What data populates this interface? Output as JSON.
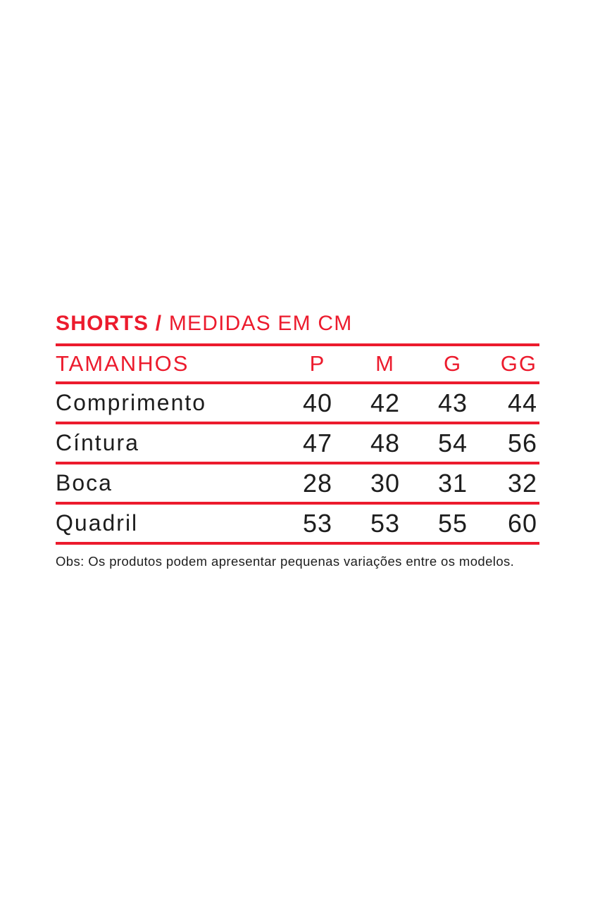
{
  "theme": {
    "accent_red": "#ec1b2d",
    "text_color": "#1d1d1d",
    "background": "#ffffff"
  },
  "header": {
    "product": "SHORTS /",
    "subtitle": " MEDIDAS EM CM"
  },
  "table": {
    "header_label": "TAMANHOS",
    "size_headers": [
      "P",
      "M",
      "G",
      "GG"
    ],
    "rows": [
      {
        "label": "Comprimento",
        "values": [
          "40",
          "42",
          "43",
          "44"
        ]
      },
      {
        "label": "Cíntura",
        "values": [
          "47",
          "48",
          "54",
          "56"
        ]
      },
      {
        "label": "Boca",
        "values": [
          "28",
          "30",
          "31",
          "32"
        ]
      },
      {
        "label": "Quadril",
        "values": [
          "53",
          "53",
          "55",
          "60"
        ]
      }
    ]
  },
  "footnote": "Obs: Os produtos podem apresentar pequenas variações entre os modelos."
}
